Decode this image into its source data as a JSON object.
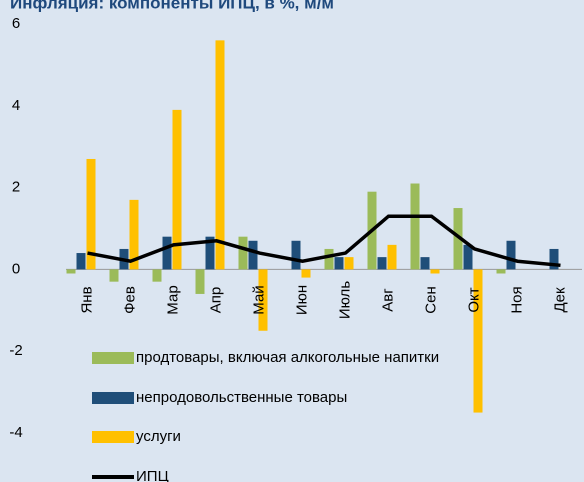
{
  "chart_data": {
    "type": "bar_line",
    "title": "Инфляция: компоненты ИПЦ, в %, м/м",
    "categories": [
      "Янв",
      "Фев",
      "Мар",
      "Апр",
      "Май",
      "Июн",
      "Июль",
      "Авг",
      "Сен",
      "Окт",
      "Ноя",
      "Дек"
    ],
    "series": [
      {
        "name": "продтовары, включая алкогольные напитки",
        "color": "#9bbb59",
        "kind": "bar",
        "values": [
          -0.1,
          -0.3,
          -0.3,
          -0.6,
          0.8,
          0,
          0.5,
          1.9,
          2.1,
          1.5,
          -0.1,
          0
        ]
      },
      {
        "name": "непродовольственные товары",
        "color": "#1f4e79",
        "kind": "bar",
        "values": [
          0.4,
          0.5,
          0.8,
          0.8,
          0.7,
          0.7,
          0.3,
          0.3,
          0.3,
          0.6,
          0.7,
          0.5
        ]
      },
      {
        "name": "услуги",
        "color": "#ffc000",
        "kind": "bar",
        "values": [
          2.7,
          1.7,
          3.9,
          5.6,
          -1.5,
          -0.2,
          0.3,
          0.6,
          -0.1,
          -3.5,
          0,
          0
        ]
      },
      {
        "name": "ИПЦ",
        "color": "#000000",
        "kind": "line",
        "values": [
          0.4,
          0.2,
          0.6,
          0.7,
          0.4,
          0.2,
          0.4,
          1.3,
          1.3,
          0.5,
          0.2,
          0.1
        ]
      }
    ],
    "ylim": [
      -4,
      6
    ],
    "yticks": [
      -4,
      -2,
      0,
      2,
      4,
      6
    ],
    "grid": false
  }
}
